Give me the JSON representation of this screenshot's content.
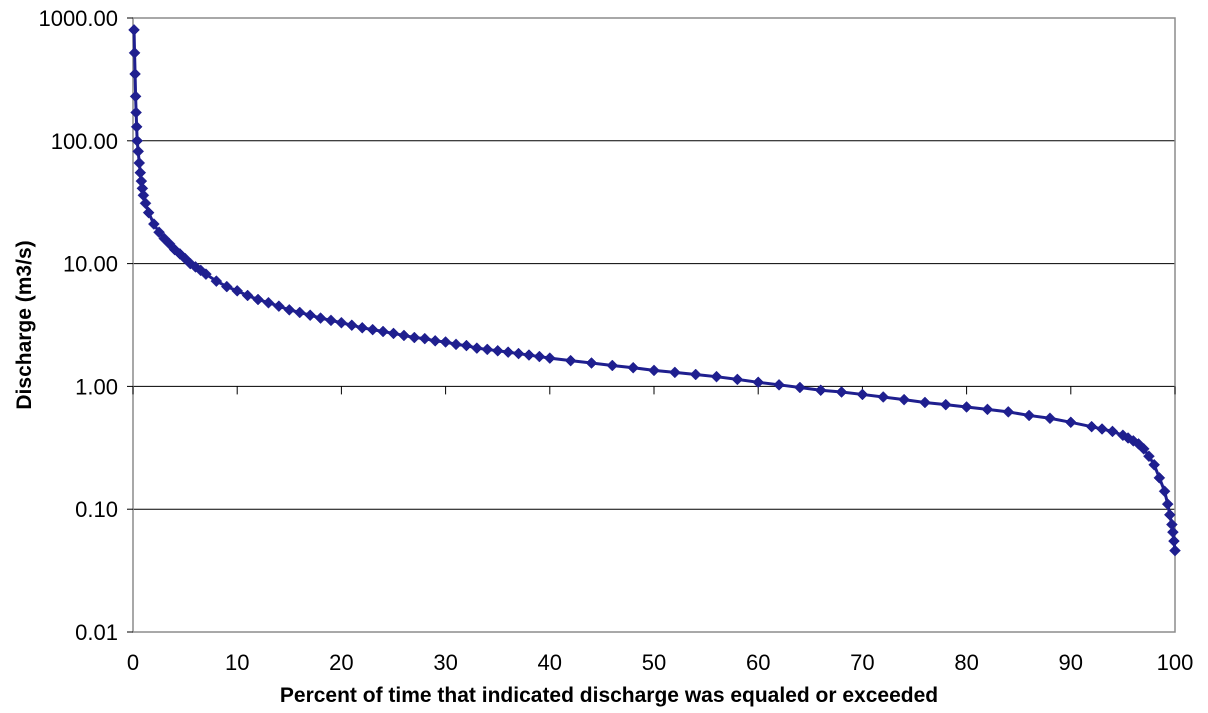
{
  "chart_data": {
    "type": "scatter",
    "title": "",
    "xlabel": "Percent of time that indicated discharge was equaled or exceeded",
    "ylabel": "Discharge (m3/s)",
    "xlim": [
      0,
      100
    ],
    "ylim": [
      0.01,
      1000
    ],
    "y_scale": "log",
    "grid": "horizontal major gridlines",
    "legend": "none",
    "marker": "diamond",
    "series_color": "#1F1F8F",
    "x_ticks": [
      "0",
      "10",
      "20",
      "30",
      "40",
      "50",
      "60",
      "70",
      "80",
      "90",
      "100"
    ],
    "y_ticks": [
      "0.01",
      "0.10",
      "1.00",
      "10.00",
      "100.00",
      "1000.00"
    ],
    "series": [
      {
        "x": [
          0.1,
          0.15,
          0.2,
          0.25,
          0.3,
          0.35,
          0.4,
          0.5,
          0.6,
          0.7,
          0.8,
          0.9,
          1.0,
          1.2,
          1.5,
          2.0,
          2.5,
          3.0,
          3.5,
          4.0,
          4.5,
          5.0,
          5.5,
          6.0,
          6.5,
          7.0,
          8.0,
          9.0,
          10.0,
          11.0,
          12.0,
          13.0,
          14.0,
          15.0,
          16.0,
          17.0,
          18.0,
          19.0,
          20.0,
          21.0,
          22.0,
          23.0,
          24.0,
          25.0,
          26.0,
          27.0,
          28.0,
          29.0,
          30.0,
          31.0,
          32.0,
          33.0,
          34.0,
          35.0,
          36.0,
          37.0,
          38.0,
          39.0,
          40.0,
          42.0,
          44.0,
          46.0,
          48.0,
          50.0,
          52.0,
          54.0,
          56.0,
          58.0,
          60.0,
          62.0,
          64.0,
          66.0,
          68.0,
          70.0,
          72.0,
          74.0,
          76.0,
          78.0,
          80.0,
          82.0,
          84.0,
          86.0,
          88.0,
          90.0,
          92.0,
          93.0,
          94.0,
          95.0,
          95.5,
          96.0,
          96.5,
          97.0,
          97.5,
          98.0,
          98.5,
          99.0,
          99.3,
          99.5,
          99.7,
          99.8,
          99.9,
          100.0
        ],
        "y": [
          800,
          520,
          350,
          230,
          170,
          130,
          100,
          82,
          66,
          55,
          47,
          41,
          36,
          31,
          26,
          21,
          18,
          16,
          14.5,
          13,
          12,
          11,
          10,
          9.4,
          8.8,
          8.2,
          7.2,
          6.5,
          6.0,
          5.5,
          5.1,
          4.8,
          4.5,
          4.2,
          4.0,
          3.8,
          3.6,
          3.45,
          3.3,
          3.15,
          3.0,
          2.9,
          2.8,
          2.7,
          2.6,
          2.5,
          2.45,
          2.35,
          2.3,
          2.2,
          2.15,
          2.05,
          2.0,
          1.95,
          1.9,
          1.85,
          1.8,
          1.75,
          1.7,
          1.62,
          1.55,
          1.48,
          1.42,
          1.35,
          1.3,
          1.25,
          1.2,
          1.14,
          1.08,
          1.03,
          0.98,
          0.93,
          0.9,
          0.86,
          0.82,
          0.78,
          0.74,
          0.71,
          0.68,
          0.65,
          0.62,
          0.58,
          0.55,
          0.51,
          0.47,
          0.45,
          0.43,
          0.4,
          0.38,
          0.36,
          0.34,
          0.31,
          0.27,
          0.23,
          0.18,
          0.14,
          0.11,
          0.09,
          0.075,
          0.065,
          0.055,
          0.046
        ]
      }
    ]
  }
}
